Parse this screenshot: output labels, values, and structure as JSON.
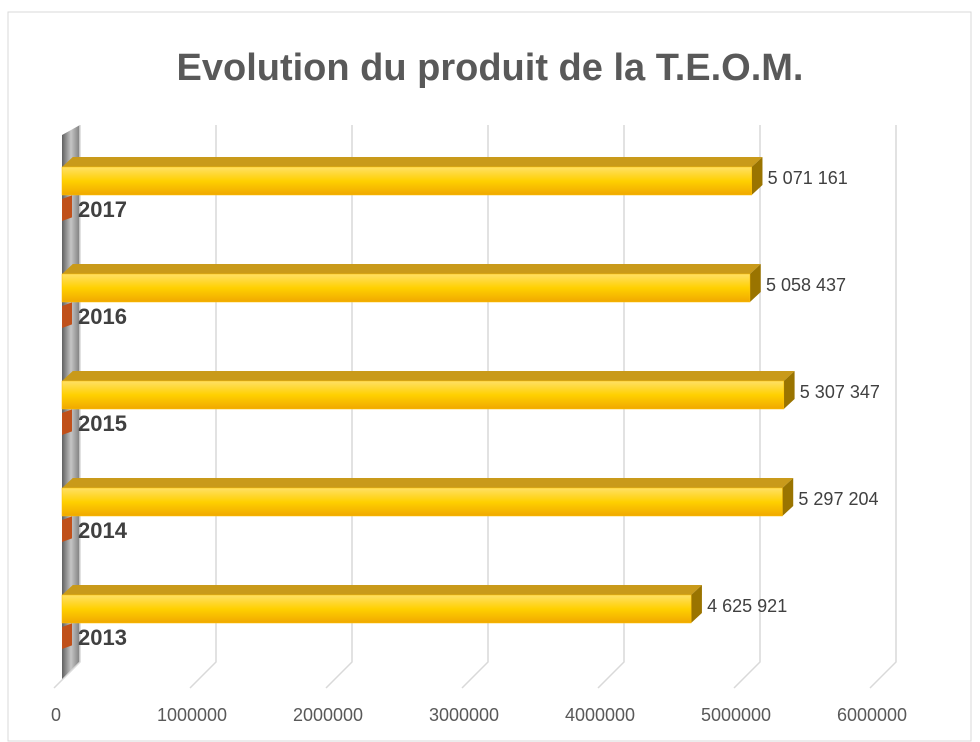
{
  "chart_data": {
    "type": "bar",
    "orientation": "horizontal",
    "title": "Evolution du produit de la T.E.O.M.",
    "categories": [
      "2013",
      "2014",
      "2015",
      "2016",
      "2017"
    ],
    "values": [
      4625921,
      5297204,
      5307347,
      5058437,
      5071161
    ],
    "value_labels": [
      "4 625 921",
      "5 297 204",
      "5 307 347",
      "5 058 437",
      "5 071 161"
    ],
    "color": "#ffc000",
    "xlim": [
      0,
      6000000
    ],
    "xticks": [
      0,
      1000000,
      2000000,
      3000000,
      4000000,
      5000000,
      6000000
    ],
    "grid": true
  }
}
